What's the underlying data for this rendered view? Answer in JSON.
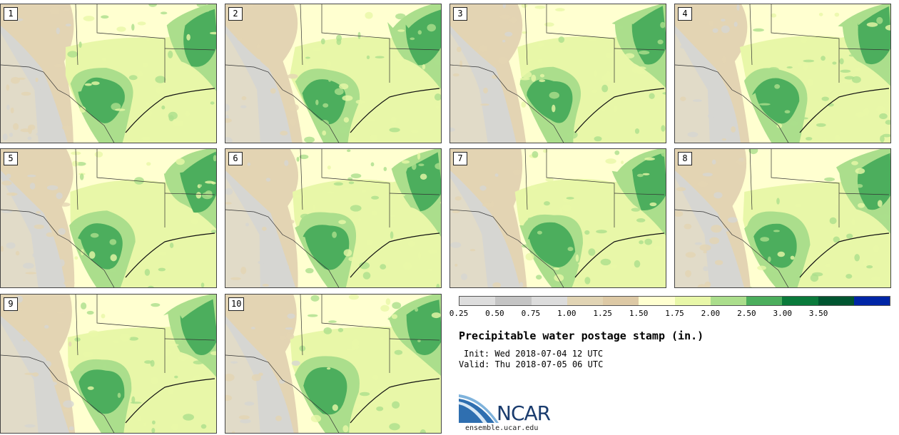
{
  "panels": [
    {
      "label": "1"
    },
    {
      "label": "2"
    },
    {
      "label": "3"
    },
    {
      "label": "4"
    },
    {
      "label": "5"
    },
    {
      "label": "6"
    },
    {
      "label": "7"
    },
    {
      "label": "8"
    },
    {
      "label": "9"
    },
    {
      "label": "10"
    }
  ],
  "colorbar": {
    "colors": [
      "#dddddd",
      "#c4c4c4",
      "#dcdcdc",
      "#e1d4b4",
      "#ddc9a5",
      "#ffffd0",
      "#e8f7a8",
      "#abde8c",
      "#4cae5d",
      "#0a7a3b",
      "#005530",
      "#0026a6"
    ],
    "labels": [
      "0.25",
      "0.50",
      "0.75",
      "1.00",
      "1.25",
      "1.50",
      "1.75",
      "2.00",
      "2.50",
      "3.00",
      "3.50"
    ]
  },
  "title": "Precipitable water postage stamp (in.)",
  "init": "Init: Wed 2018-07-04 12 UTC",
  "valid": "Valid: Thu 2018-07-05 06 UTC",
  "logo": {
    "text": "NCAR",
    "site": "ensemble.ucar.edu"
  },
  "map_colors": {
    "dry_gray": "#d6d6d2",
    "tan": "#e3d4b3",
    "pale_yellow": "#ffffd0",
    "light_green": "#e8f7a8",
    "mid_green": "#abde8c",
    "green": "#4cae5d",
    "dark_green": "#177f42"
  }
}
